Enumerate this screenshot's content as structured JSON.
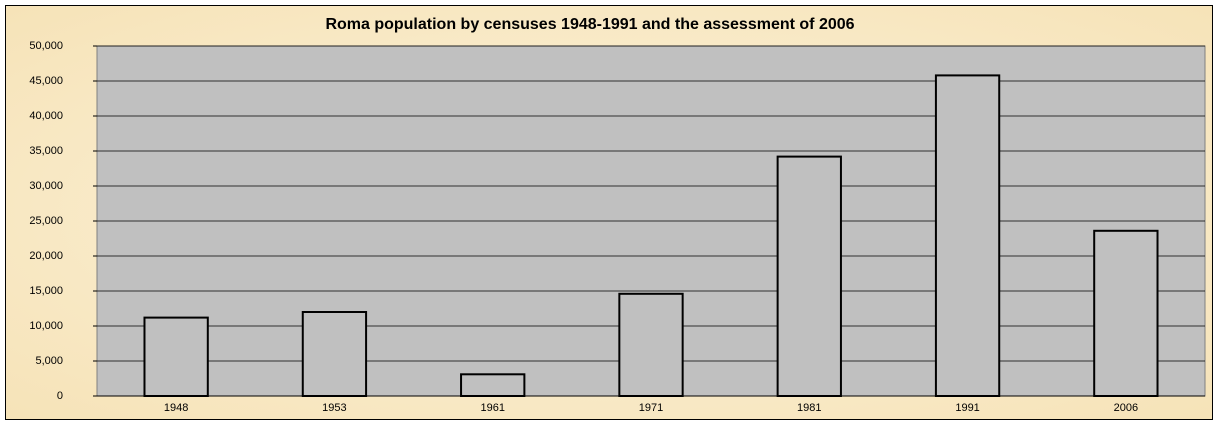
{
  "chart_data": {
    "type": "bar",
    "title": "Roma population by censuses 1948-1991 and the assessment of 2006",
    "categories": [
      "1948",
      "1953",
      "1961",
      "1971",
      "1981",
      "1991",
      "2006"
    ],
    "values": [
      11200,
      12000,
      3100,
      14600,
      34200,
      45800,
      23600
    ],
    "color": "#c0c0c0",
    "ylim": [
      0,
      50000
    ],
    "yticks": [
      0,
      {
        "value": 5000,
        "label": "5,000"
      },
      {
        "value": 10000,
        "label": "10,000"
      },
      {
        "value": 15000,
        "label": "15,000"
      },
      {
        "value": 20000,
        "label": "20,000"
      },
      {
        "value": 25000,
        "label": "25,000"
      },
      {
        "value": 30000,
        "label": "30,000"
      },
      {
        "value": 35000,
        "label": "35,000"
      },
      {
        "value": 40000,
        "label": "40,000"
      },
      {
        "value": 45000,
        "label": "45,000"
      },
      {
        "value": 50000,
        "label": "50,000"
      }
    ],
    "grid": true
  }
}
